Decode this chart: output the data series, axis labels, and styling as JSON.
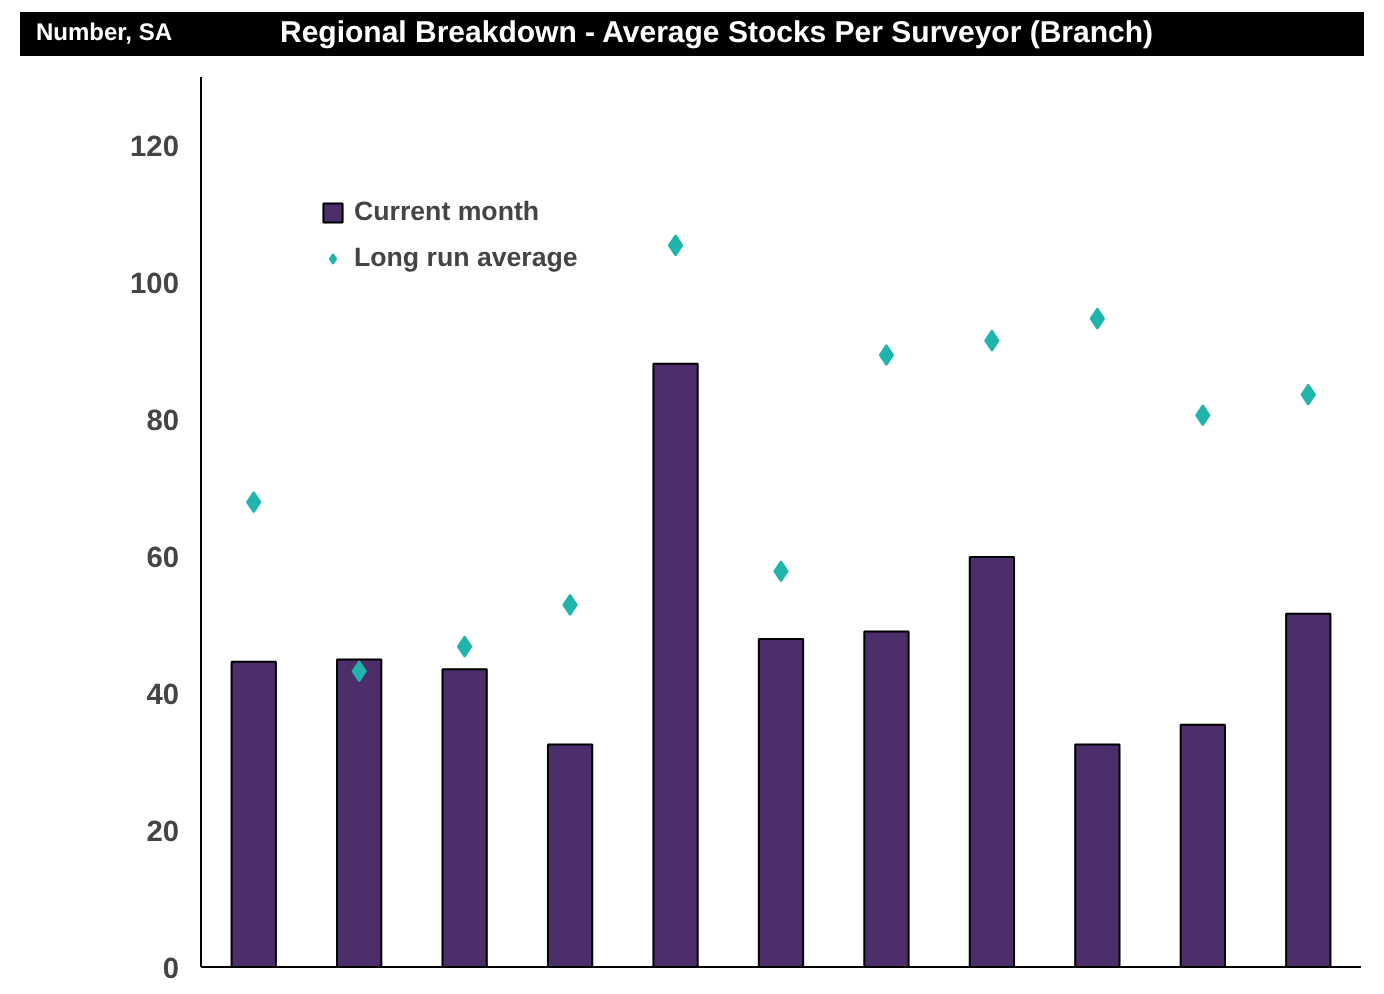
{
  "chart_data": {
    "type": "bar",
    "title": "Regional Breakdown - Average Stocks Per Surveyor (Branch)",
    "ylabel": "Number, SA",
    "categories": [
      null,
      null,
      null,
      null,
      null,
      null,
      null,
      null,
      null,
      null,
      null
    ],
    "series": [
      {
        "name": "Current month",
        "color": "#4b2e6a",
        "values": [
          44.6,
          44.9,
          43.5,
          32.5,
          88.1,
          47.9,
          49.0,
          59.9,
          32.5,
          35.4,
          51.6
        ]
      },
      {
        "name": "Long run average",
        "type": "scatter",
        "color": "#1fb5ad",
        "marker": "diamond",
        "values": [
          67.9,
          43.2,
          46.8,
          52.9,
          105.4,
          57.8,
          89.4,
          91.5,
          94.7,
          80.6,
          83.6
        ]
      }
    ],
    "ylim": [
      0,
      130
    ],
    "yticks": [
      0,
      20,
      40,
      60,
      80,
      100,
      120
    ],
    "grid": false,
    "legend": "top left",
    "tick_labels": "y"
  }
}
